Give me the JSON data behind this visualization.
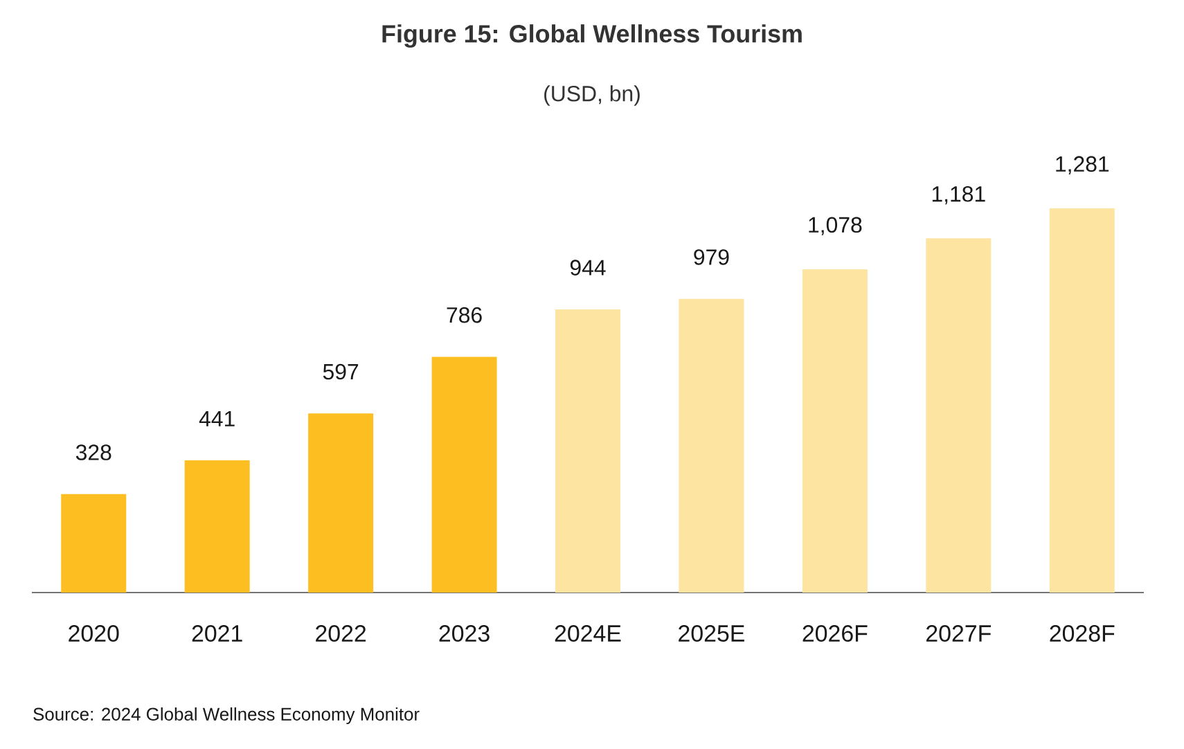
{
  "chart_data": {
    "type": "bar",
    "title": "Figure 15: Global Wellness Tourism",
    "subtitle": "(USD, bn)",
    "categories": [
      "2020",
      "2021",
      "2022",
      "2023",
      "2024E",
      "2025E",
      "2026F",
      "2027F",
      "2028F"
    ],
    "values": [
      328,
      441,
      597,
      786,
      944,
      979,
      1078,
      1181,
      1281
    ],
    "value_labels": [
      "328",
      "441",
      "597",
      "786",
      "944",
      "979",
      "1,078",
      "1,181",
      "1,281"
    ],
    "colors": [
      "#fdbe22",
      "#fdbe22",
      "#fdbe22",
      "#fdbe22",
      "#fee4a1",
      "#fee4a1",
      "#fee4a1",
      "#fee4a1",
      "#fee4a1"
    ],
    "annotations": [
      "Source: 2024 Global Wellness Economy Monitor"
    ]
  }
}
